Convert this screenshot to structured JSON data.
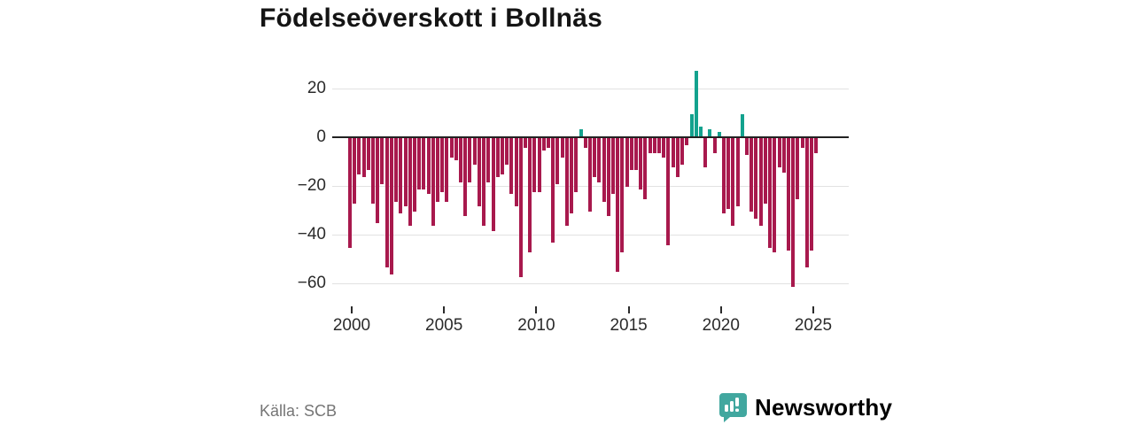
{
  "title": "Födelseöverskott i Bollnäs",
  "source": "Källa: SCB",
  "brand": {
    "name": "Newsworthy",
    "color": "#41a79f"
  },
  "colors": {
    "negative_bar": "#a8194d",
    "positive_bar": "#13a28e",
    "gridline": "#e2e2e2",
    "zero_axis": "#222222",
    "title_text": "#141414",
    "tick_text": "#2b2b2b",
    "source_text": "#757575"
  },
  "chart_data": {
    "type": "bar",
    "title": "Födelseöverskott i Bollnäs",
    "xlabel": "",
    "ylabel": "",
    "period": "quarterly",
    "x_start_year": 2000,
    "x_tick_labels": [
      "2000",
      "2005",
      "2010",
      "2015",
      "2020",
      "2025"
    ],
    "x_tick_years": [
      2000,
      2005,
      2010,
      2015,
      2020,
      2025
    ],
    "y_tick_labels": [
      "20",
      "0",
      "−20",
      "−40",
      "−60"
    ],
    "y_ticks": [
      20,
      0,
      -20,
      -40,
      -60
    ],
    "ylim": [
      -65,
      30
    ],
    "grid": "horizontal",
    "legend": "none",
    "values": [
      -45,
      -27,
      -15,
      -16,
      -13,
      -27,
      -35,
      -19,
      -53,
      -56,
      -26,
      -31,
      -28,
      -36,
      -30,
      -21,
      -21,
      -23,
      -36,
      -26,
      -22,
      -26,
      -8,
      -9,
      -18,
      -32,
      -18,
      -11,
      -28,
      -36,
      -18,
      -38,
      -16,
      -15,
      -11,
      -23,
      -28,
      -57,
      -4,
      -47,
      -22,
      -22,
      -5,
      -4,
      -43,
      -19,
      -8,
      -36,
      -31,
      -22,
      3,
      -4,
      -30,
      -16,
      -18,
      -26,
      -32,
      -23,
      -55,
      -47,
      -20,
      -13,
      -13,
      -21,
      -25,
      -6,
      -6,
      -6,
      -8,
      -44,
      -12,
      -16,
      -11,
      -3,
      9,
      27,
      4,
      -12,
      3,
      -6,
      2,
      -31,
      -29,
      -36,
      -28,
      9,
      -7,
      -30,
      -33,
      -36,
      -27,
      -45,
      -47,
      -12,
      -14,
      -46,
      -61,
      -25,
      -4,
      -53,
      -46,
      -6
    ]
  }
}
